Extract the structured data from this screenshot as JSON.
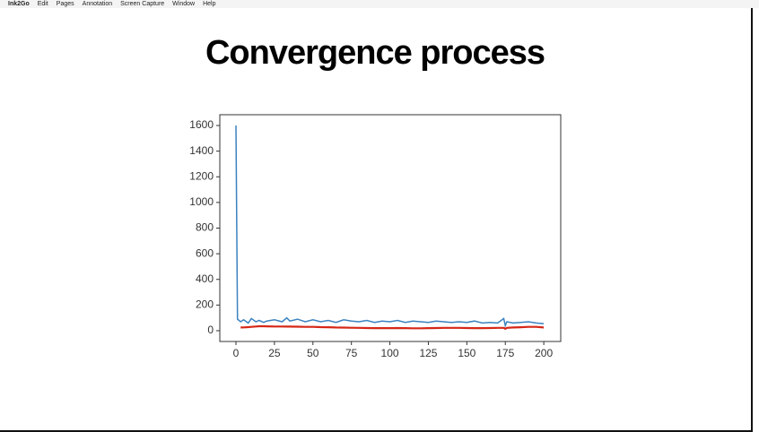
{
  "menu_bar": {
    "items": [
      "Ink2Go",
      "Edit",
      "Pages",
      "Annotation",
      "Screen Capture",
      "Window",
      "Help"
    ]
  },
  "chart_data": {
    "type": "line",
    "title": "Convergence process",
    "x": [
      0,
      1,
      3,
      5,
      8,
      10,
      13,
      15,
      18,
      20,
      25,
      30,
      33,
      35,
      40,
      45,
      50,
      55,
      60,
      65,
      70,
      75,
      80,
      85,
      90,
      95,
      100,
      105,
      110,
      115,
      120,
      125,
      130,
      135,
      140,
      145,
      150,
      155,
      160,
      165,
      170,
      174,
      175,
      176,
      180,
      185,
      190,
      195,
      200
    ],
    "series": [
      {
        "color": "#3b82c0",
        "values": [
          1600,
          90,
          70,
          85,
          60,
          95,
          70,
          80,
          65,
          75,
          85,
          70,
          100,
          75,
          90,
          70,
          85,
          70,
          80,
          65,
          85,
          75,
          70,
          80,
          65,
          75,
          70,
          80,
          65,
          75,
          70,
          65,
          75,
          70,
          65,
          70,
          65,
          75,
          60,
          65,
          60,
          95,
          40,
          70,
          60,
          65,
          70,
          60,
          55
        ]
      },
      {
        "color": "#d62716",
        "values": [
          null,
          null,
          25,
          26,
          28,
          30,
          33,
          35,
          35,
          34,
          33,
          33,
          32,
          32,
          31,
          30,
          30,
          28,
          27,
          25,
          24,
          23,
          22,
          21,
          20,
          20,
          20,
          21,
          20,
          19,
          19,
          20,
          21,
          22,
          22,
          22,
          21,
          20,
          20,
          21,
          22,
          22,
          15,
          22,
          25,
          27,
          30,
          30,
          25
        ]
      }
    ],
    "xlim": [
      -10.5,
      211
    ],
    "ylim": [
      -84,
      1684
    ],
    "xticks": [
      0,
      25,
      50,
      75,
      100,
      125,
      150,
      175,
      200
    ],
    "yticks": [
      0,
      200,
      400,
      600,
      800,
      1000,
      1200,
      1400,
      1600
    ]
  }
}
